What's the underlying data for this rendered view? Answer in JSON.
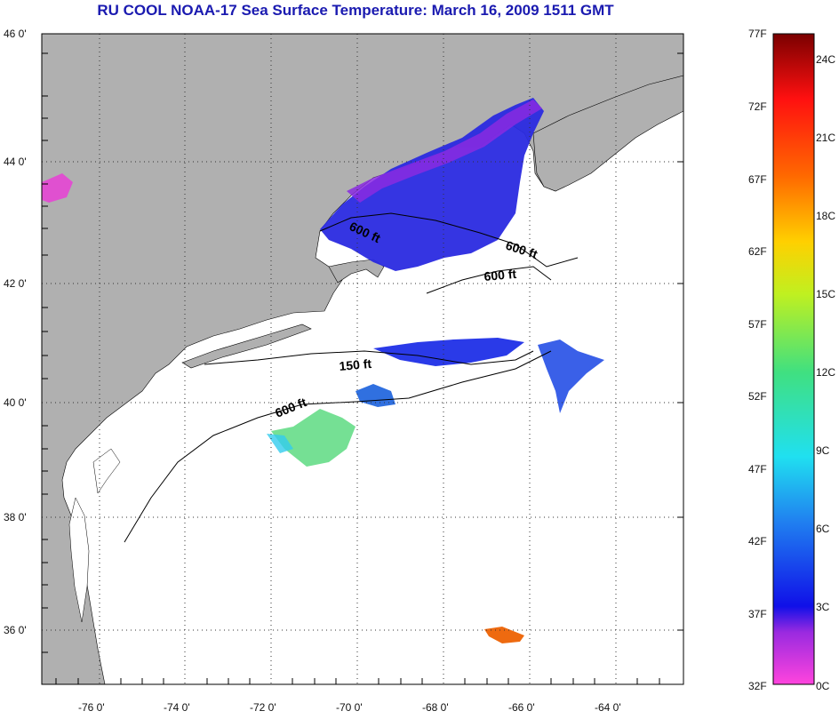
{
  "title": "RU COOL  NOAA-17  Sea Surface Temperature:  March 16, 2009 1511 GMT",
  "map": {
    "lat_ticks": [
      "46 0'",
      "44 0'",
      "42 0'",
      "40 0'",
      "38 0'",
      "36 0'"
    ],
    "lon_ticks": [
      "-76 0'",
      "-74 0'",
      "-72 0'",
      "-70 0'",
      "-68 0'",
      "-66 0'",
      "-64 0'"
    ],
    "contour_labels": [
      "600 ft",
      "600 ft",
      "600 ft",
      "150 ft",
      "600 ft"
    ],
    "land_color": "#b0b0b0",
    "ocean_color": "#ffffff"
  },
  "colorbar": {
    "f_labels": [
      "77F",
      "72F",
      "67F",
      "62F",
      "57F",
      "52F",
      "47F",
      "42F",
      "37F",
      "32F"
    ],
    "c_labels": [
      "24C",
      "21C",
      "18C",
      "15C",
      "12C",
      "9C",
      "6C",
      "3C",
      "0C"
    ],
    "range_f": [
      32,
      77
    ],
    "range_c": [
      0,
      25
    ]
  }
}
